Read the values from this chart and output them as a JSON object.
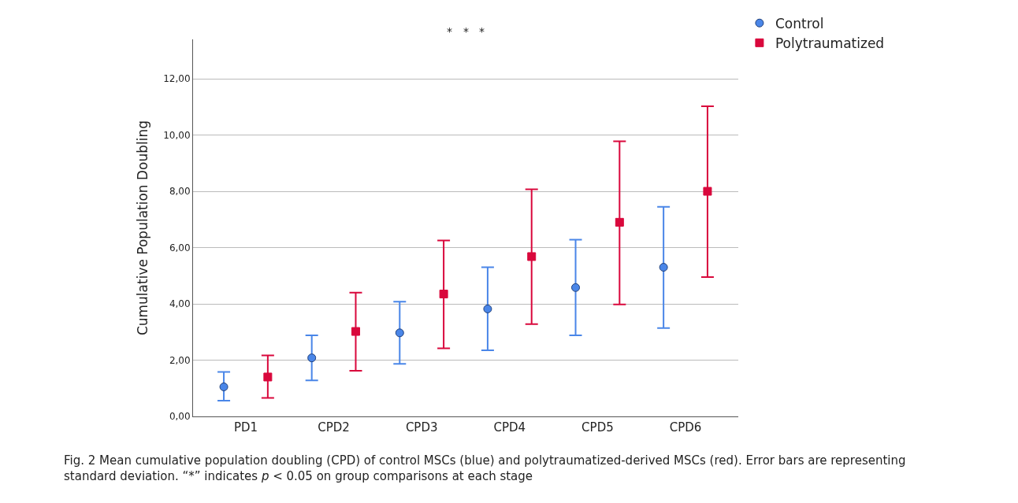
{
  "chart_data": {
    "type": "scatter",
    "ylabel": "Cumulative Population Doubling",
    "categories": [
      "PD1",
      "CPD2",
      "CPD3",
      "CPD4",
      "CPD5",
      "CPD6"
    ],
    "series": [
      {
        "name": "Control",
        "color": "#4a86e8",
        "marker": "circle",
        "values": [
          1.05,
          2.08,
          2.97,
          3.82,
          4.58,
          5.3
        ],
        "errors": [
          [
            0.56,
            1.58
          ],
          [
            1.28,
            2.88
          ],
          [
            1.87,
            4.08
          ],
          [
            2.35,
            5.3
          ],
          [
            2.88,
            6.28
          ],
          [
            3.14,
            7.45
          ]
        ]
      },
      {
        "name": "Polytraumatized",
        "color": "#d9083c",
        "marker": "square",
        "values": [
          1.4,
          3.02,
          4.35,
          5.68,
          6.9,
          8.0
        ],
        "errors": [
          [
            0.66,
            2.17
          ],
          [
            1.62,
            4.4
          ],
          [
            2.42,
            6.25
          ],
          [
            3.28,
            8.07
          ],
          [
            3.98,
            9.78
          ],
          [
            4.95,
            11.02
          ]
        ]
      }
    ],
    "ylim": [
      0,
      13.4
    ],
    "yticks": [
      {
        "value": 0,
        "label": "0,00"
      },
      {
        "value": 2,
        "label": "2,00"
      },
      {
        "value": 4,
        "label": "4,00"
      },
      {
        "value": 6,
        "label": "6,00"
      },
      {
        "value": 8,
        "label": "8,00"
      },
      {
        "value": 10,
        "label": "10,00"
      },
      {
        "value": 12,
        "label": "12,00"
      }
    ],
    "grid": "y",
    "legend": "top right",
    "annotations": [
      "*",
      "*",
      "*",
      "Fig. 2 Mean cumulative population doubling (CPD) of control MSCs (blue) and polytraumatized-derived MSCs (red). Error bars are representing standard deviation. “*” indicates p < 0.05 on group comparisons at each stage"
    ]
  }
}
